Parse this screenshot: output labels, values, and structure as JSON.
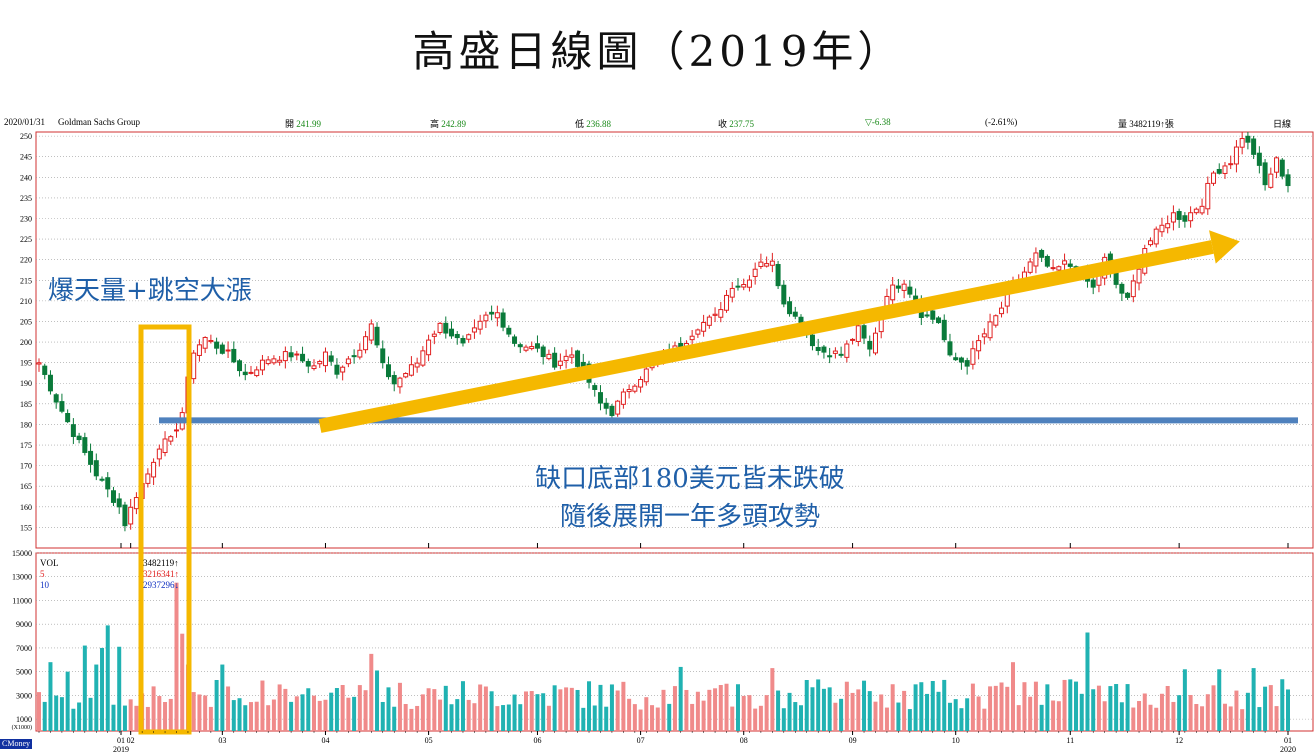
{
  "slide": {
    "title": "高盛日線圖（2019年）"
  },
  "info": {
    "date": "2020/01/31",
    "name": "Goldman Sachs Group",
    "open_label": "開",
    "open": "241.99",
    "high_label": "高",
    "high": "242.89",
    "low_label": "低",
    "low": "236.88",
    "close_label": "收",
    "close": "237.75",
    "change": "▽-6.38",
    "change_pct": "(-2.61%)",
    "vol_label": "量",
    "vol": "3482119↑張",
    "period": "日線"
  },
  "annotations": {
    "top": "爆天量+跳空大漲",
    "bottom_line1": "缺口底部180美元皆未跌破",
    "bottom_line2": "隨後展開一年多頭攻勢"
  },
  "volume_legend": {
    "vol": "VOL",
    "ma5": "5",
    "ma10": "10",
    "vol_value": "3482119↑",
    "ma5_value": "3216341↑",
    "ma10_value": "2937296↓"
  },
  "brand": "CMoney",
  "colors": {
    "up": "#e02020",
    "down": "#0a7a3a",
    "vol_up": "#f08a8a",
    "vol_down": "#20b2b2",
    "accent": "#f5b800",
    "support": "#4f81bd",
    "annotation": "#1f5fa8"
  },
  "chart_data": [
    {
      "type": "candlestick",
      "title": "",
      "ylim": [
        150,
        251
      ],
      "y_ticks": [
        155,
        160,
        165,
        170,
        175,
        180,
        185,
        190,
        195,
        200,
        205,
        210,
        215,
        220,
        225,
        230,
        235,
        240,
        245,
        250
      ],
      "x_tick_labels": [
        "01",
        "02",
        "03",
        "04",
        "05",
        "06",
        "07",
        "08",
        "09",
        "10",
        "11",
        "12",
        "01"
      ],
      "x_year_labels": [
        "2019",
        "2020"
      ],
      "grid": true,
      "support_level": 181,
      "gap_day_index": 24,
      "anchors": [
        [
          0,
          195
        ],
        [
          3,
          186
        ],
        [
          6,
          178
        ],
        [
          8,
          173
        ],
        [
          10,
          168
        ],
        [
          14,
          160
        ],
        [
          15,
          156
        ],
        [
          17,
          163
        ],
        [
          19,
          168
        ],
        [
          21,
          175
        ],
        [
          23,
          176
        ],
        [
          25,
          183
        ],
        [
          27,
          198
        ],
        [
          29,
          201
        ],
        [
          31,
          199
        ],
        [
          33,
          197
        ],
        [
          36,
          192
        ],
        [
          40,
          196
        ],
        [
          44,
          197
        ],
        [
          48,
          194
        ],
        [
          50,
          197
        ],
        [
          52,
          193
        ],
        [
          56,
          199
        ],
        [
          58,
          204
        ],
        [
          60,
          194
        ],
        [
          62,
          190
        ],
        [
          66,
          195
        ],
        [
          68,
          201
        ],
        [
          70,
          204
        ],
        [
          72,
          202
        ],
        [
          74,
          199
        ],
        [
          78,
          206
        ],
        [
          80,
          207
        ],
        [
          83,
          200
        ],
        [
          87,
          198
        ],
        [
          90,
          195
        ],
        [
          93,
          197
        ],
        [
          95,
          193
        ],
        [
          98,
          185
        ],
        [
          100,
          183
        ],
        [
          103,
          189
        ],
        [
          106,
          193
        ],
        [
          109,
          197
        ],
        [
          112,
          199
        ],
        [
          115,
          204
        ],
        [
          118,
          206
        ],
        [
          121,
          214
        ],
        [
          123,
          214
        ],
        [
          126,
          220
        ],
        [
          128,
          219
        ],
        [
          130,
          210
        ],
        [
          133,
          204
        ],
        [
          136,
          198
        ],
        [
          140,
          197
        ],
        [
          143,
          203
        ],
        [
          145,
          198
        ],
        [
          148,
          212
        ],
        [
          151,
          215
        ],
        [
          154,
          207
        ],
        [
          157,
          205
        ],
        [
          159,
          196
        ],
        [
          162,
          195
        ],
        [
          164,
          200
        ],
        [
          167,
          206
        ],
        [
          170,
          213
        ],
        [
          172,
          217
        ],
        [
          174,
          221
        ],
        [
          177,
          217
        ],
        [
          179,
          219
        ],
        [
          181,
          218
        ],
        [
          184,
          213
        ],
        [
          186,
          220
        ],
        [
          188,
          214
        ],
        [
          190,
          210
        ],
        [
          193,
          223
        ],
        [
          196,
          228
        ],
        [
          198,
          231
        ],
        [
          200,
          230
        ],
        [
          203,
          234
        ],
        [
          205,
          241
        ],
        [
          208,
          244
        ],
        [
          210,
          250
        ],
        [
          212,
          246
        ],
        [
          214,
          238
        ],
        [
          216,
          244
        ],
        [
          218,
          238
        ]
      ],
      "volume_ylim": [
        0,
        15000
      ],
      "volume_y_ticks": [
        1000,
        3000,
        5000,
        7000,
        9000,
        11000,
        13000,
        15000
      ],
      "volume_ytick_labels": [
        "1000",
        "3000",
        "5000",
        "7000",
        "9000",
        "11000",
        "13000",
        "15000"
      ],
      "volume_unit_label": "(X1000)",
      "volume_spikes": [
        [
          2,
          5800
        ],
        [
          5,
          5000
        ],
        [
          8,
          7200
        ],
        [
          10,
          5600
        ],
        [
          11,
          7000
        ],
        [
          12,
          8900
        ],
        [
          14,
          7100
        ],
        [
          24,
          12500
        ],
        [
          25,
          8200
        ],
        [
          26,
          5600
        ],
        [
          32,
          5600
        ],
        [
          58,
          6500
        ],
        [
          59,
          5100
        ],
        [
          112,
          5400
        ],
        [
          128,
          5300
        ],
        [
          170,
          5800
        ],
        [
          183,
          8300
        ],
        [
          200,
          5200
        ],
        [
          206,
          5200
        ],
        [
          212,
          5300
        ]
      ]
    }
  ]
}
